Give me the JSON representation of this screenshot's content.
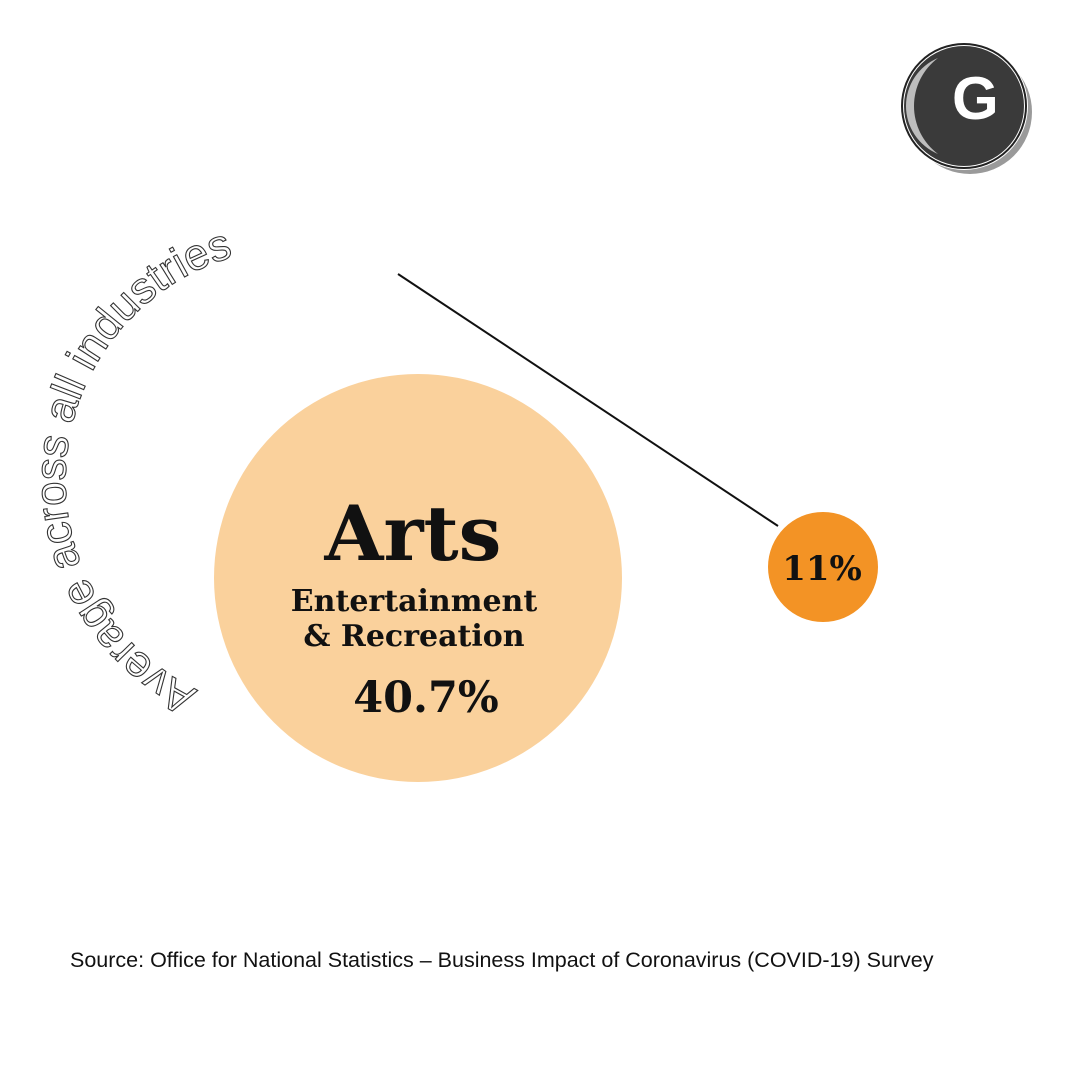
{
  "chart_data": {
    "type": "bubble",
    "title": "",
    "bubbles": [
      {
        "name": "Arts",
        "sublabel_line1": "Entertainment",
        "sublabel_line2": "& Recreation",
        "value": 40.7,
        "value_label": "40.7%",
        "color": "#FAD19C"
      },
      {
        "name": "Average across all industries",
        "value": 11,
        "value_label": "11%",
        "color": "#F39325"
      }
    ]
  },
  "source": "Source: Office for National Statistics – Business Impact of Coronavirus (COVID-19) Survey",
  "logo": {
    "letter": "G"
  }
}
